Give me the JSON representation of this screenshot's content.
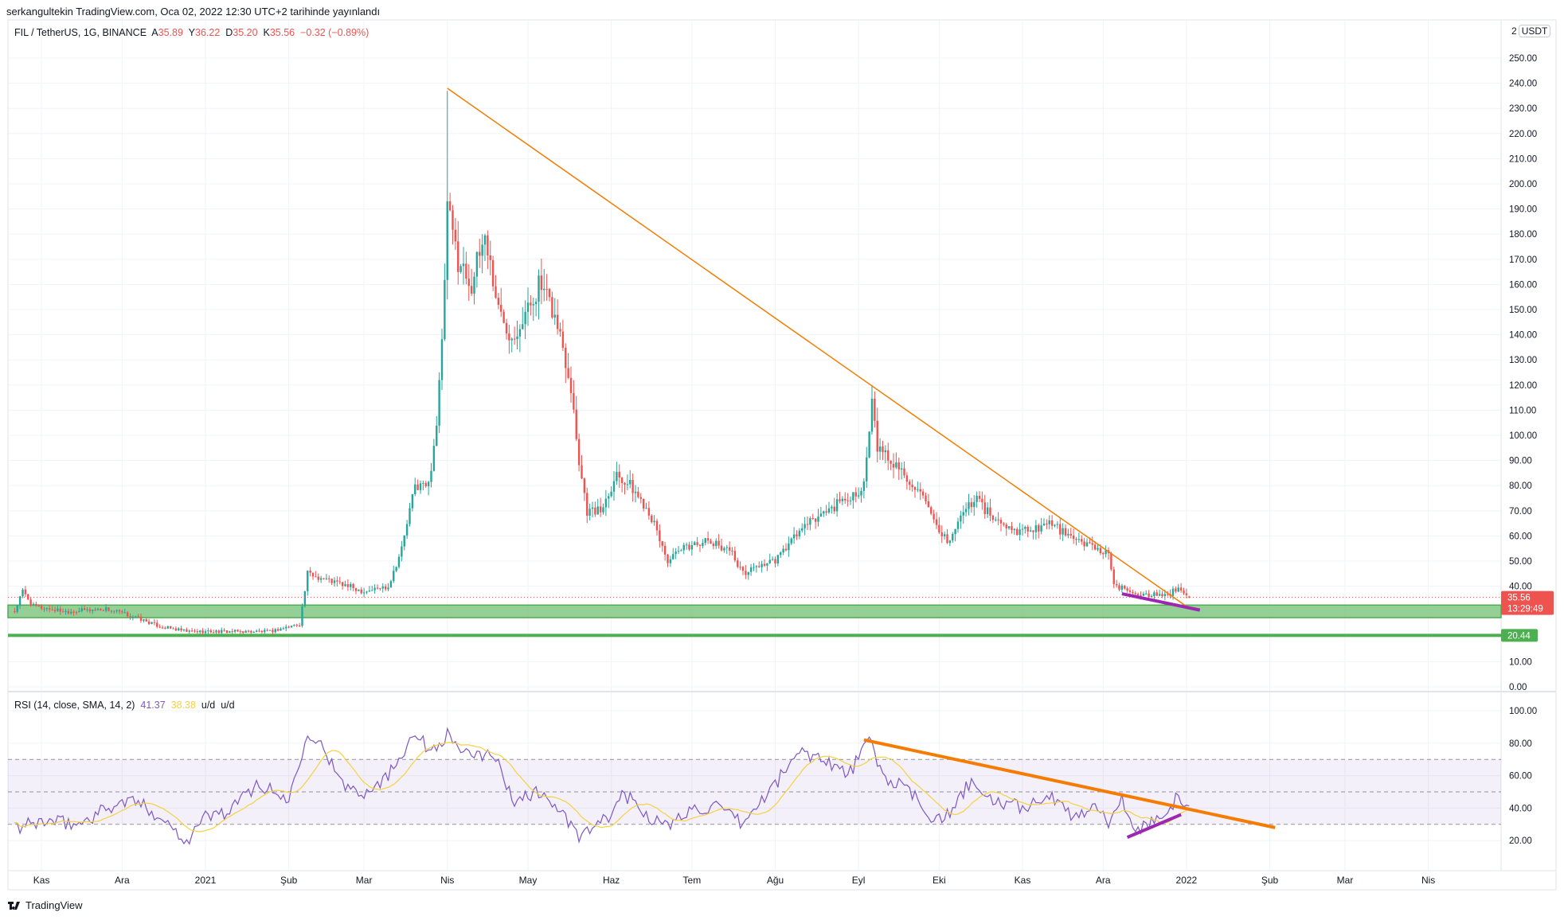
{
  "header": {
    "published": "serkangultekin TradingView.com, Oca 02, 2022 12:30 UTC+2 tarihinde yayınlandı"
  },
  "legend": {
    "symbol": "FIL / TetherUS, 1G, BINANCE",
    "o_label": "A",
    "o": "35.89",
    "h_label": "Y",
    "h": "36.22",
    "l_label": "D",
    "l": "35.20",
    "c_label": "K",
    "c": "35.56",
    "change": "−0.32 (−0.89%)"
  },
  "price_axis": {
    "scale_prefix": "2",
    "currency": "USDT",
    "last_price": "35.56",
    "countdown": "13:29:49",
    "level_label": "20.44"
  },
  "rsi_legend": {
    "title": "RSI (14, close, SMA, 14, 2)",
    "rsi": "41.37",
    "sma": "38.38",
    "u1": "u/d",
    "u2": "u/d"
  },
  "footer": {
    "brand": "TradingView"
  },
  "colors": {
    "up": "#26a69a",
    "down": "#ef5350",
    "rsi": "#7e57c2",
    "rsi_sma": "#f5d142",
    "trend": "#f57c00",
    "divergence": "#9c27b0",
    "support": "#4caf50",
    "zone": "#81c784"
  },
  "chart_data": [
    {
      "type": "candlestick",
      "title": "FIL / TetherUS, 1G, BINANCE",
      "ylim": [
        0,
        260
      ],
      "grid": true,
      "yticks": [
        0,
        10,
        40,
        50,
        60,
        70,
        80,
        90,
        100,
        110,
        120,
        130,
        140,
        150,
        160,
        170,
        180,
        190,
        200,
        210,
        220,
        230,
        240,
        250
      ],
      "xticks": [
        {
          "label": "Kas",
          "date": "2020-11-01"
        },
        {
          "label": "Ara",
          "date": "2020-12-01"
        },
        {
          "label": "2021",
          "date": "2021-01-01"
        },
        {
          "label": "Şub",
          "date": "2021-02-01"
        },
        {
          "label": "Mar",
          "date": "2021-03-01"
        },
        {
          "label": "Nis",
          "date": "2021-04-01"
        },
        {
          "label": "May",
          "date": "2021-05-01"
        },
        {
          "label": "Haz",
          "date": "2021-06-01"
        },
        {
          "label": "Tem",
          "date": "2021-07-01"
        },
        {
          "label": "Ağu",
          "date": "2021-08-01"
        },
        {
          "label": "Eyl",
          "date": "2021-09-01"
        },
        {
          "label": "Eki",
          "date": "2021-10-01"
        },
        {
          "label": "Kas",
          "date": "2021-11-01"
        },
        {
          "label": "Ara",
          "date": "2021-12-01"
        },
        {
          "label": "2022",
          "date": "2022-01-01"
        },
        {
          "label": "Şub",
          "date": "2022-02-01"
        },
        {
          "label": "Mar",
          "date": "2022-03-01"
        },
        {
          "label": "Nis",
          "date": "2022-04-01"
        }
      ],
      "close_keypoints": [
        [
          "2020-10-22",
          30
        ],
        [
          "2020-10-25",
          38
        ],
        [
          "2020-10-29",
          32
        ],
        [
          "2020-11-10",
          30
        ],
        [
          "2020-11-25",
          31
        ],
        [
          "2020-12-05",
          28
        ],
        [
          "2020-12-15",
          24
        ],
        [
          "2020-12-25",
          22
        ],
        [
          "2021-01-10",
          22
        ],
        [
          "2021-01-25",
          22
        ],
        [
          "2021-02-05",
          25
        ],
        [
          "2021-02-08",
          45
        ],
        [
          "2021-02-20",
          41
        ],
        [
          "2021-03-01",
          38
        ],
        [
          "2021-03-10",
          40
        ],
        [
          "2021-03-15",
          55
        ],
        [
          "2021-03-20",
          80
        ],
        [
          "2021-03-25",
          80
        ],
        [
          "2021-03-28",
          105
        ],
        [
          "2021-03-30",
          135
        ],
        [
          "2021-04-01",
          190
        ],
        [
          "2021-04-05",
          170
        ],
        [
          "2021-04-10",
          160
        ],
        [
          "2021-04-15",
          180
        ],
        [
          "2021-04-20",
          150
        ],
        [
          "2021-04-25",
          140
        ],
        [
          "2021-05-01",
          150
        ],
        [
          "2021-05-05",
          160
        ],
        [
          "2021-05-10",
          150
        ],
        [
          "2021-05-13",
          140
        ],
        [
          "2021-05-17",
          120
        ],
        [
          "2021-05-20",
          90
        ],
        [
          "2021-05-23",
          70
        ],
        [
          "2021-05-28",
          70
        ],
        [
          "2021-06-03",
          85
        ],
        [
          "2021-06-08",
          80
        ],
        [
          "2021-06-15",
          70
        ],
        [
          "2021-06-22",
          50
        ],
        [
          "2021-06-28",
          55
        ],
        [
          "2021-07-05",
          58
        ],
        [
          "2021-07-15",
          55
        ],
        [
          "2021-07-20",
          45
        ],
        [
          "2021-07-25",
          48
        ],
        [
          "2021-08-01",
          50
        ],
        [
          "2021-08-10",
          62
        ],
        [
          "2021-08-20",
          70
        ],
        [
          "2021-08-28",
          75
        ],
        [
          "2021-09-03",
          80
        ],
        [
          "2021-09-06",
          112
        ],
        [
          "2021-09-08",
          95
        ],
        [
          "2021-09-15",
          88
        ],
        [
          "2021-09-22",
          80
        ],
        [
          "2021-09-28",
          68
        ],
        [
          "2021-10-01",
          60
        ],
        [
          "2021-10-05",
          58
        ],
        [
          "2021-10-10",
          70
        ],
        [
          "2021-10-15",
          75
        ],
        [
          "2021-10-20",
          68
        ],
        [
          "2021-10-28",
          62
        ],
        [
          "2021-11-05",
          63
        ],
        [
          "2021-11-12",
          65
        ],
        [
          "2021-11-20",
          58
        ],
        [
          "2021-11-28",
          56
        ],
        [
          "2021-12-03",
          52
        ],
        [
          "2021-12-05",
          40
        ],
        [
          "2021-12-15",
          37
        ],
        [
          "2021-12-25",
          36
        ],
        [
          "2021-12-28",
          39
        ],
        [
          "2022-01-02",
          35.56
        ]
      ],
      "special_wicks": [
        [
          "2021-04-01",
          237
        ],
        [
          "2021-09-06",
          120
        ]
      ],
      "last_candle": {
        "open": 35.89,
        "high": 36.22,
        "low": 35.2,
        "close": 35.56
      },
      "last_price": 35.56,
      "support_level": 20.44,
      "support_zone": [
        27.5,
        32.5
      ],
      "trendline": [
        [
          "2021-04-01",
          238
        ],
        [
          "2022-01-01",
          32
        ]
      ],
      "divergence_line": [
        [
          "2021-12-08",
          37
        ],
        [
          "2022-01-06",
          30.5
        ]
      ]
    },
    {
      "type": "line",
      "title": "RSI (14, close, SMA, 14, 2)",
      "ylim": [
        10,
        110
      ],
      "levels": [
        70,
        50,
        30
      ],
      "band": [
        30,
        70
      ],
      "yticks": [
        20,
        40,
        60,
        80,
        100
      ],
      "rsi_keypoints": [
        [
          "2020-10-22",
          27
        ],
        [
          "2020-11-01",
          32
        ],
        [
          "2020-11-15",
          30
        ],
        [
          "2020-11-25",
          40
        ],
        [
          "2020-12-05",
          45
        ],
        [
          "2020-12-15",
          35
        ],
        [
          "2020-12-25",
          20
        ],
        [
          "2021-01-01",
          35
        ],
        [
          "2021-01-10",
          38
        ],
        [
          "2021-01-20",
          55
        ],
        [
          "2021-02-01",
          45
        ],
        [
          "2021-02-08",
          88
        ],
        [
          "2021-02-15",
          75
        ],
        [
          "2021-02-20",
          55
        ],
        [
          "2021-03-01",
          50
        ],
        [
          "2021-03-10",
          60
        ],
        [
          "2021-03-20",
          88
        ],
        [
          "2021-03-25",
          75
        ],
        [
          "2021-04-01",
          85
        ],
        [
          "2021-04-10",
          70
        ],
        [
          "2021-04-18",
          75
        ],
        [
          "2021-04-25",
          45
        ],
        [
          "2021-05-05",
          50
        ],
        [
          "2021-05-12",
          40
        ],
        [
          "2021-05-20",
          22
        ],
        [
          "2021-06-01",
          35
        ],
        [
          "2021-06-05",
          50
        ],
        [
          "2021-06-15",
          35
        ],
        [
          "2021-06-22",
          28
        ],
        [
          "2021-07-01",
          40
        ],
        [
          "2021-07-10",
          40
        ],
        [
          "2021-07-20",
          30
        ],
        [
          "2021-08-01",
          55
        ],
        [
          "2021-08-10",
          75
        ],
        [
          "2021-08-20",
          70
        ],
        [
          "2021-08-28",
          60
        ],
        [
          "2021-09-05",
          82
        ],
        [
          "2021-09-10",
          60
        ],
        [
          "2021-09-20",
          50
        ],
        [
          "2021-09-28",
          35
        ],
        [
          "2021-10-05",
          35
        ],
        [
          "2021-10-12",
          55
        ],
        [
          "2021-10-20",
          45
        ],
        [
          "2021-11-01",
          40
        ],
        [
          "2021-11-10",
          48
        ],
        [
          "2021-11-20",
          35
        ],
        [
          "2021-11-28",
          42
        ],
        [
          "2021-12-04",
          30
        ],
        [
          "2021-12-08",
          48
        ],
        [
          "2021-12-12",
          25
        ],
        [
          "2021-12-20",
          33
        ],
        [
          "2021-12-28",
          45
        ],
        [
          "2022-01-02",
          41.37
        ]
      ],
      "trendline": [
        [
          "2021-09-03",
          82
        ],
        [
          "2022-02-03",
          28
        ]
      ],
      "divergence_line": [
        [
          "2021-12-10",
          22
        ],
        [
          "2021-12-30",
          36
        ]
      ]
    }
  ]
}
